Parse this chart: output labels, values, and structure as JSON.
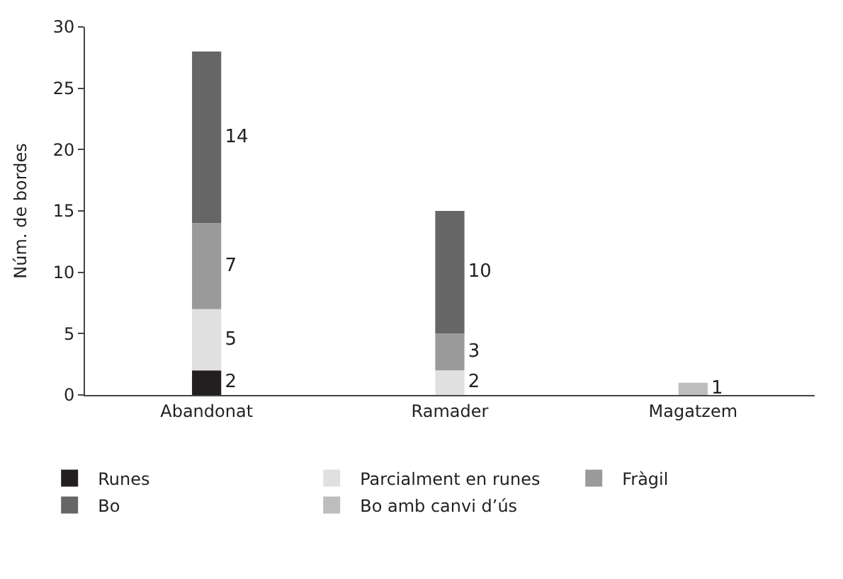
{
  "chart_data": {
    "type": "bar",
    "stacked": true,
    "ylabel": "Núm. de bordes",
    "categories": [
      "Abandonat",
      "Ramader",
      "Magatzem"
    ],
    "series": [
      {
        "name": "Runes",
        "color": "#231f20",
        "values": [
          2,
          null,
          null
        ]
      },
      {
        "name": "Parcialment en runes",
        "color": "#e0e0e0",
        "values": [
          5,
          2,
          null
        ]
      },
      {
        "name": "Fràgil",
        "color": "#9a9a9a",
        "values": [
          7,
          3,
          null
        ]
      },
      {
        "name": "Bo",
        "color": "#666666",
        "values": [
          14,
          10,
          null
        ]
      },
      {
        "name": "Bo amb canvi d’ús",
        "color": "#bdbdbd",
        "values": [
          null,
          null,
          1
        ]
      }
    ],
    "ylim": [
      0,
      30
    ],
    "yticks": [
      0,
      5,
      10,
      15,
      20,
      25,
      30
    ],
    "legend": "bottom",
    "data_labels": true
  }
}
